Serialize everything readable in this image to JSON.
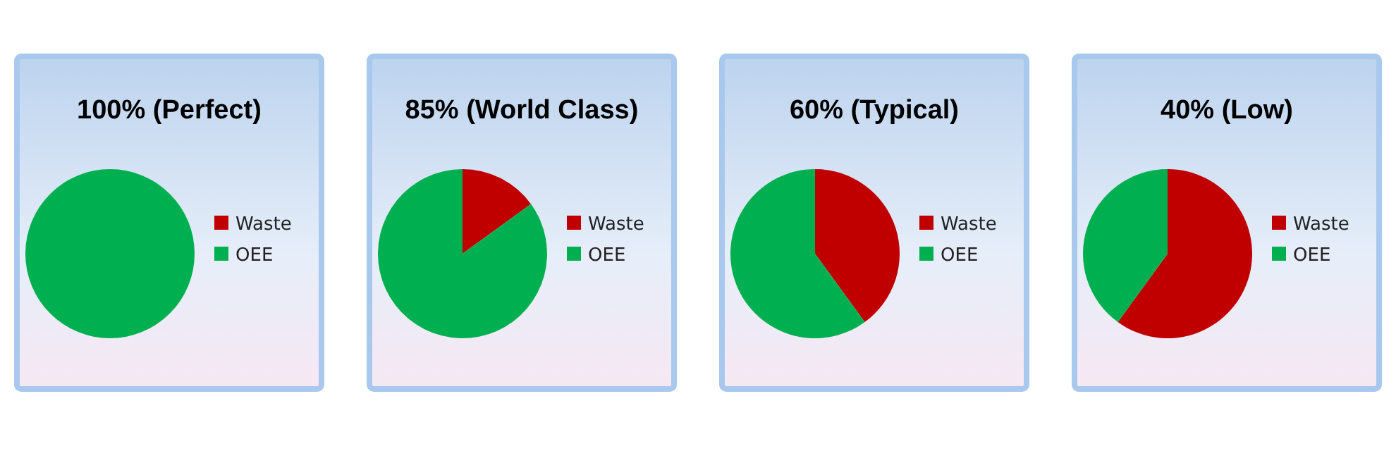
{
  "chart_data": [
    {
      "type": "pie",
      "title": "100%  (Perfect)",
      "categories": [
        "Waste",
        "OEE"
      ],
      "values": [
        0,
        100
      ],
      "colors": [
        "#c00000",
        "#00b050"
      ],
      "legend": "right"
    },
    {
      "type": "pie",
      "title": "85% (World Class)",
      "categories": [
        "Waste",
        "OEE"
      ],
      "values": [
        15,
        85
      ],
      "colors": [
        "#c00000",
        "#00b050"
      ],
      "legend": "right"
    },
    {
      "type": "pie",
      "title": "60% (Typical)",
      "categories": [
        "Waste",
        "OEE"
      ],
      "values": [
        40,
        60
      ],
      "colors": [
        "#c00000",
        "#00b050"
      ],
      "legend": "right"
    },
    {
      "type": "pie",
      "title": "40% (Low)",
      "categories": [
        "Waste",
        "OEE"
      ],
      "values": [
        60,
        40
      ],
      "colors": [
        "#c00000",
        "#00b050"
      ],
      "legend": "right"
    }
  ]
}
